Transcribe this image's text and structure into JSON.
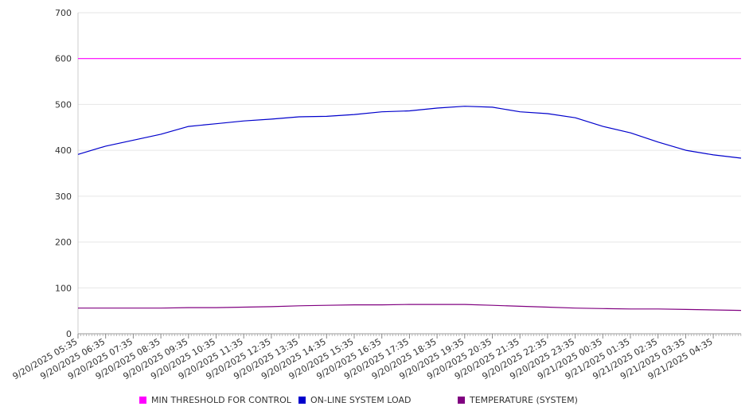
{
  "chart_data": {
    "type": "line",
    "ylim": [
      0,
      700
    ],
    "y_ticks": [
      0,
      100,
      200,
      300,
      400,
      500,
      600,
      700
    ],
    "x_tick_labels": [
      "9/20/2025 05:35",
      "9/20/2025 06:35",
      "9/20/2025 07:35",
      "9/20/2025 08:35",
      "9/20/2025 09:35",
      "9/20/2025 10:35",
      "9/20/2025 11:35",
      "9/20/2025 12:35",
      "9/20/2025 13:35",
      "9/20/2025 14:35",
      "9/20/2025 15:35",
      "9/20/2025 16:35",
      "9/20/2025 17:35",
      "9/20/2025 18:35",
      "9/20/2025 19:35",
      "9/20/2025 20:35",
      "9/20/2025 21:35",
      "9/20/2025 22:35",
      "9/20/2025 23:35",
      "9/21/2025 00:35",
      "9/21/2025 01:35",
      "9/21/2025 02:35",
      "9/21/2025 03:35",
      "9/21/2025 04:35"
    ],
    "grid": true,
    "legend_position": "bottom",
    "series": [
      {
        "name": "MIN THRESHOLD FOR CONTROL",
        "color": "#ff00ff",
        "values": [
          600,
          600,
          600,
          600,
          600,
          600,
          600,
          600,
          600,
          600,
          600,
          600,
          600,
          600,
          600,
          600,
          600,
          600,
          600,
          600,
          600,
          600,
          600,
          600,
          600
        ]
      },
      {
        "name": "ON-LINE SYSTEM LOAD",
        "color": "#0000cc",
        "values": [
          391,
          409,
          422,
          435,
          452,
          458,
          464,
          468,
          473,
          474,
          478,
          484,
          486,
          492,
          496,
          494,
          484,
          480,
          471,
          452,
          438,
          418,
          400,
          390,
          383
        ]
      },
      {
        "name": "TEMPERATURE (SYSTEM)",
        "color": "#800080",
        "values": [
          56,
          56,
          56,
          56,
          57,
          57,
          58,
          59,
          61,
          62,
          63,
          63,
          64,
          64,
          64,
          62,
          60,
          58,
          56,
          55,
          54,
          54,
          53,
          52,
          51
        ]
      }
    ]
  }
}
